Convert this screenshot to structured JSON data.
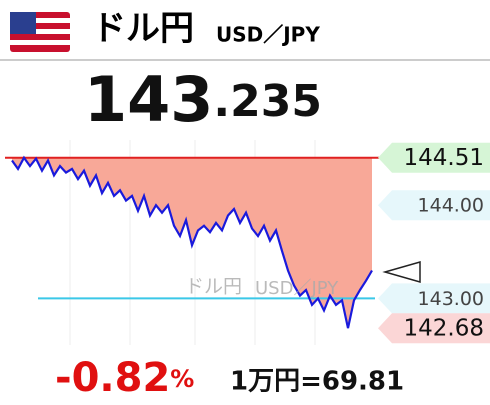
{
  "chart_data": {
    "type": "line",
    "title": "ドル円",
    "subtitle": "USD／JPY",
    "price_int": "143",
    "price_frac": ".235",
    "change": "-0.82",
    "change_unit": "%",
    "conversion": "1万円=69.81",
    "color": "#1a1adc",
    "area_color": "#f8a898",
    "reference_lines": [
      {
        "value": 144.51,
        "color": "#e02020"
      },
      {
        "value": 143,
        "color": "#3ac8e8"
      }
    ],
    "ylim": [
      142.5,
      144.7
    ],
    "yticks": [
      144.51,
      {
        "value": 144,
        "label": "144.00"
      },
      {
        "value": 143,
        "label": "143.00"
      },
      142.68
    ],
    "values": [
      144.48,
      144.39,
      144.51,
      144.42,
      144.5,
      144.37,
      144.48,
      144.32,
      144.42,
      144.35,
      144.39,
      144.28,
      144.37,
      144.21,
      144.32,
      144.13,
      144.24,
      144.1,
      144.16,
      144.05,
      144.1,
      143.94,
      144.1,
      143.89,
      144.0,
      143.92,
      144.0,
      143.78,
      143.67,
      143.84,
      143.57,
      143.73,
      143.78,
      143.71,
      143.81,
      143.73,
      143.89,
      143.96,
      143.81,
      143.92,
      143.75,
      143.67,
      143.78,
      143.62,
      143.73,
      143.51,
      143.3,
      143.14,
      143.03,
      143.09,
      142.93,
      143.0,
      142.87,
      143.03,
      142.93,
      142.98,
      142.68,
      142.98,
      143.09,
      143.19,
      143.3
    ]
  }
}
